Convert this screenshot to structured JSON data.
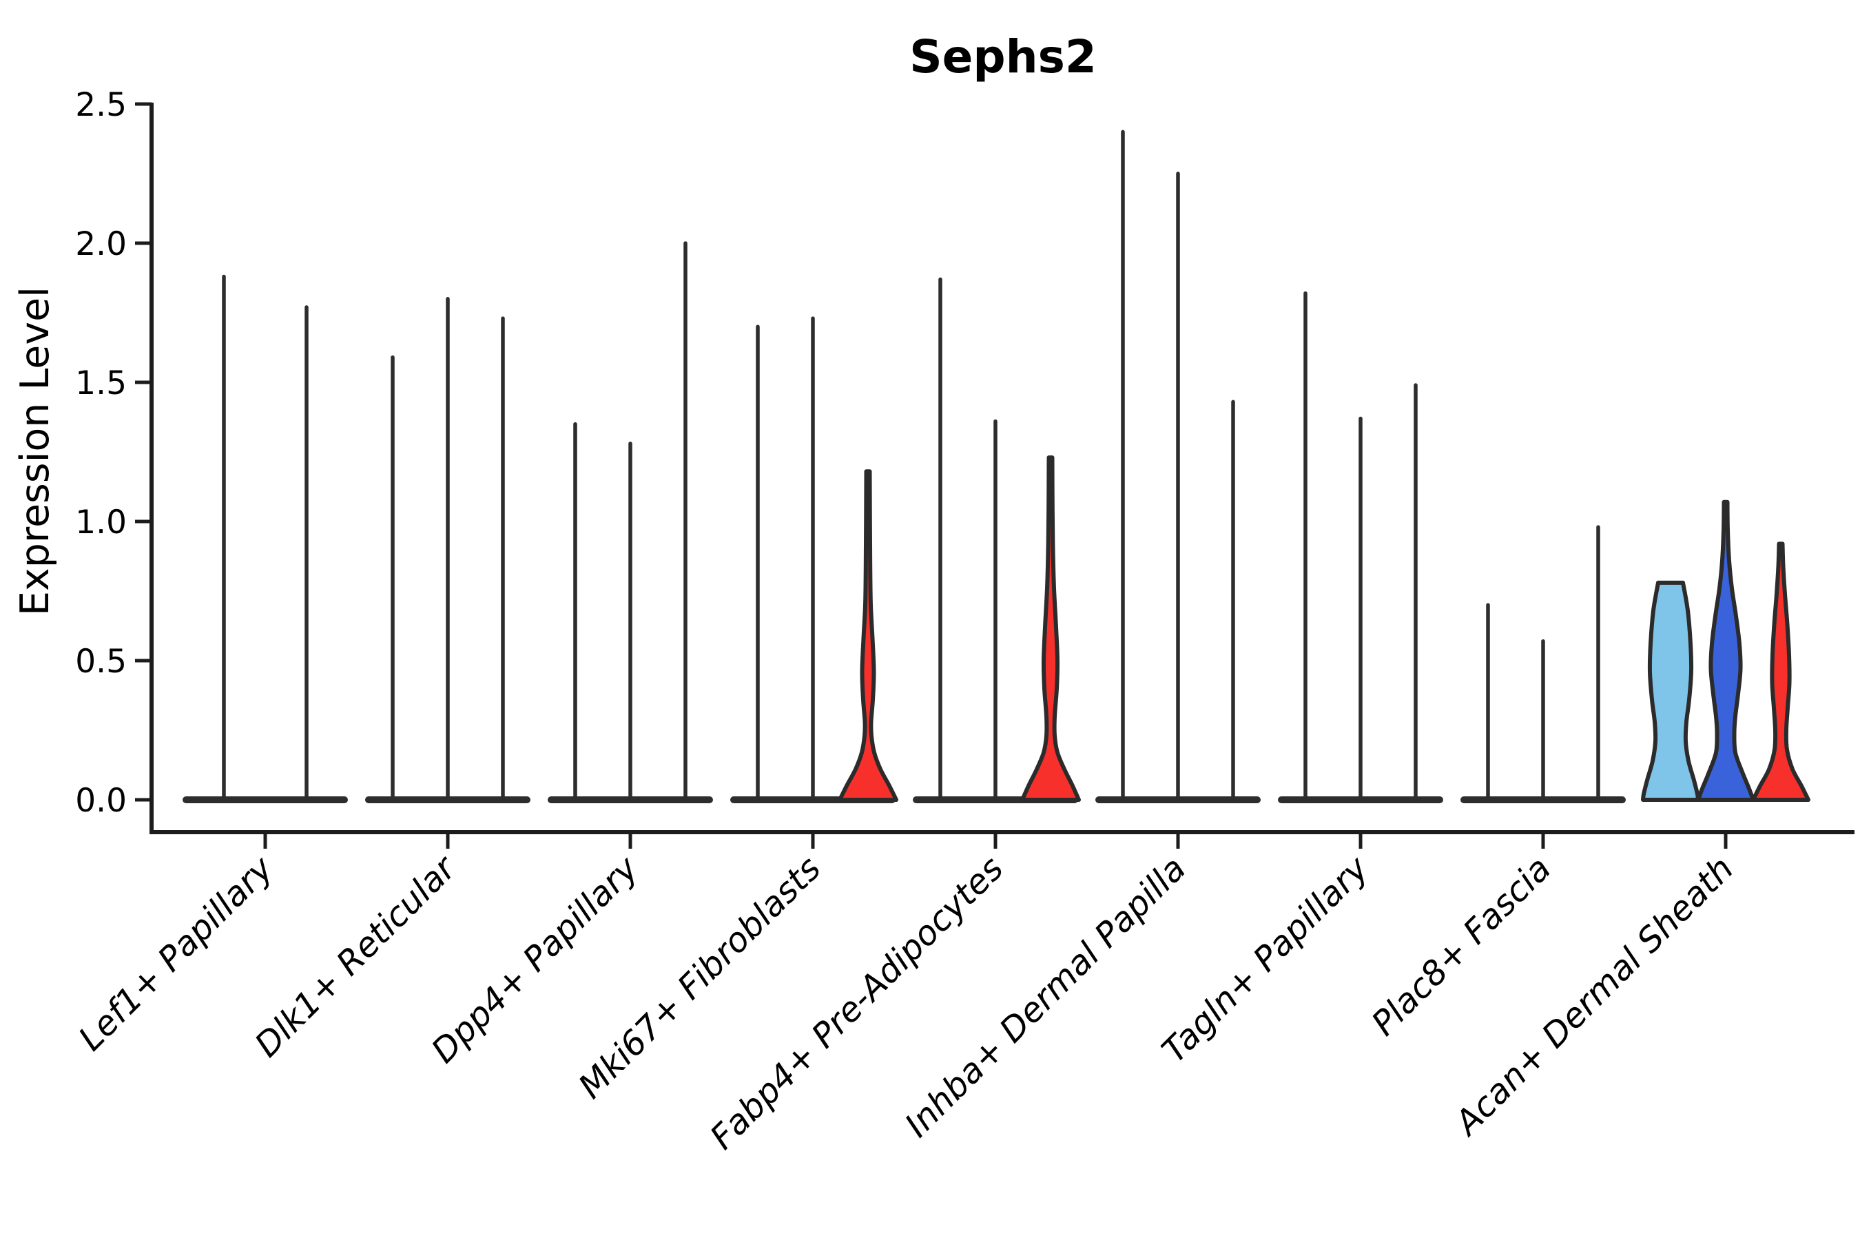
{
  "chart_data": {
    "type": "violin",
    "title": "Sephs2",
    "ylabel": "Expression Level",
    "xlabel": "",
    "ylim": [
      -0.12,
      2.5
    ],
    "yticks": [
      "0.0",
      "0.5",
      "1.0",
      "1.5",
      "2.0",
      "2.5"
    ],
    "grid": false,
    "legend": "none",
    "categories": [
      "Lef1+ Papillary",
      "Dlk1+ Reticular",
      "Dpp4+ Papillary",
      "Mki67+ Fibroblasts",
      "Fabp4+ Pre-Adipocytes",
      "Inhba+ Dermal Papilla",
      "Tagln+ Papillary",
      "Plac8+ Fascia",
      "Acan+ Dermal Sheath"
    ],
    "groups": [
      {
        "label": "Lef1+ Papillary",
        "violins": [
          {
            "max": 1.88,
            "style": "spike"
          },
          {
            "max": 1.77,
            "style": "spike"
          }
        ]
      },
      {
        "label": "Dlk1+ Reticular",
        "violins": [
          {
            "max": 1.59,
            "style": "spike"
          },
          {
            "max": 1.8,
            "style": "spike"
          },
          {
            "max": 1.73,
            "style": "spike"
          }
        ]
      },
      {
        "label": "Dpp4+ Papillary",
        "violins": [
          {
            "max": 1.35,
            "style": "spike"
          },
          {
            "max": 1.28,
            "style": "spike"
          },
          {
            "max": 2.0,
            "style": "spike"
          }
        ]
      },
      {
        "label": "Mki67+ Fibroblasts",
        "violins": [
          {
            "max": 1.7,
            "style": "spike"
          },
          {
            "max": 1.73,
            "style": "spike"
          },
          {
            "max": 1.18,
            "style": "shaped",
            "color": "red",
            "profile": [
              [
                1.18,
                2.5
              ],
              [
                1.0,
                2.8
              ],
              [
                0.84,
                3.2
              ],
              [
                0.7,
                4
              ],
              [
                0.58,
                6.5
              ],
              [
                0.46,
                8.5
              ],
              [
                0.36,
                7
              ],
              [
                0.28,
                4.5
              ],
              [
                0.23,
                5
              ],
              [
                0.17,
                9
              ],
              [
                0.11,
                18
              ],
              [
                0.05,
                31
              ],
              [
                0,
                41
              ]
            ]
          }
        ]
      },
      {
        "label": "Fabp4+ Pre-Adipocytes",
        "violins": [
          {
            "max": 1.87,
            "style": "spike"
          },
          {
            "max": 1.36,
            "style": "spike"
          },
          {
            "max": 1.23,
            "style": "shaped",
            "color": "red",
            "profile": [
              [
                1.23,
                2.5
              ],
              [
                1.05,
                2.8
              ],
              [
                0.9,
                3.5
              ],
              [
                0.76,
                5
              ],
              [
                0.62,
                8
              ],
              [
                0.5,
                10
              ],
              [
                0.4,
                9
              ],
              [
                0.3,
                6
              ],
              [
                0.23,
                6
              ],
              [
                0.17,
                10
              ],
              [
                0.11,
                20
              ],
              [
                0.05,
                32
              ],
              [
                0,
                41
              ]
            ]
          }
        ]
      },
      {
        "label": "Inhba+ Dermal Papilla",
        "violins": [
          {
            "max": 2.4,
            "style": "spike"
          },
          {
            "max": 2.25,
            "style": "spike"
          },
          {
            "max": 1.43,
            "style": "spike"
          }
        ]
      },
      {
        "label": "Tagln+ Papillary",
        "violins": [
          {
            "max": 1.82,
            "style": "spike"
          },
          {
            "max": 1.37,
            "style": "spike"
          },
          {
            "max": 1.49,
            "style": "spike"
          }
        ]
      },
      {
        "label": "Plac8+ Fascia",
        "violins": [
          {
            "max": 0.7,
            "style": "spike"
          },
          {
            "max": 0.57,
            "style": "spike"
          },
          {
            "max": 0.98,
            "style": "spike"
          }
        ]
      },
      {
        "label": "Acan+ Dermal Sheath",
        "violins": [
          {
            "max": 0.78,
            "style": "shaped",
            "flat_top": true,
            "color": "light_blue",
            "profile": [
              [
                0.78,
                18
              ],
              [
                0.68,
                25
              ],
              [
                0.56,
                29
              ],
              [
                0.46,
                30
              ],
              [
                0.36,
                27
              ],
              [
                0.28,
                23
              ],
              [
                0.21,
                22
              ],
              [
                0.14,
                26
              ],
              [
                0.07,
                34
              ],
              [
                0.02,
                39
              ],
              [
                0,
                40
              ]
            ]
          },
          {
            "max": 1.07,
            "style": "shaped",
            "color": "dark_blue",
            "profile": [
              [
                1.07,
                2.5
              ],
              [
                0.97,
                3
              ],
              [
                0.86,
                5
              ],
              [
                0.76,
                9
              ],
              [
                0.66,
                15
              ],
              [
                0.56,
                20
              ],
              [
                0.47,
                21.5
              ],
              [
                0.38,
                18
              ],
              [
                0.3,
                14
              ],
              [
                0.24,
                12.5
              ],
              [
                0.17,
                14
              ],
              [
                0.1,
                24
              ],
              [
                0.04,
                34
              ],
              [
                0,
                40
              ]
            ]
          },
          {
            "max": 0.92,
            "style": "shaped",
            "color": "red",
            "profile": [
              [
                0.92,
                2.5
              ],
              [
                0.84,
                3.5
              ],
              [
                0.74,
                6
              ],
              [
                0.63,
                9.5
              ],
              [
                0.52,
                12
              ],
              [
                0.42,
                12.5
              ],
              [
                0.33,
                10
              ],
              [
                0.25,
                8
              ],
              [
                0.18,
                9
              ],
              [
                0.11,
                17
              ],
              [
                0.05,
                30
              ],
              [
                0,
                40
              ]
            ]
          }
        ]
      }
    ],
    "colors": {
      "spike": "#2D2D2D",
      "outline": "#2B2B2B",
      "red": "#F8302C",
      "light_blue": "#7FC5E9",
      "dark_blue": "#3A63DB",
      "axis": "#1C1C1C",
      "text": "#000000"
    }
  }
}
